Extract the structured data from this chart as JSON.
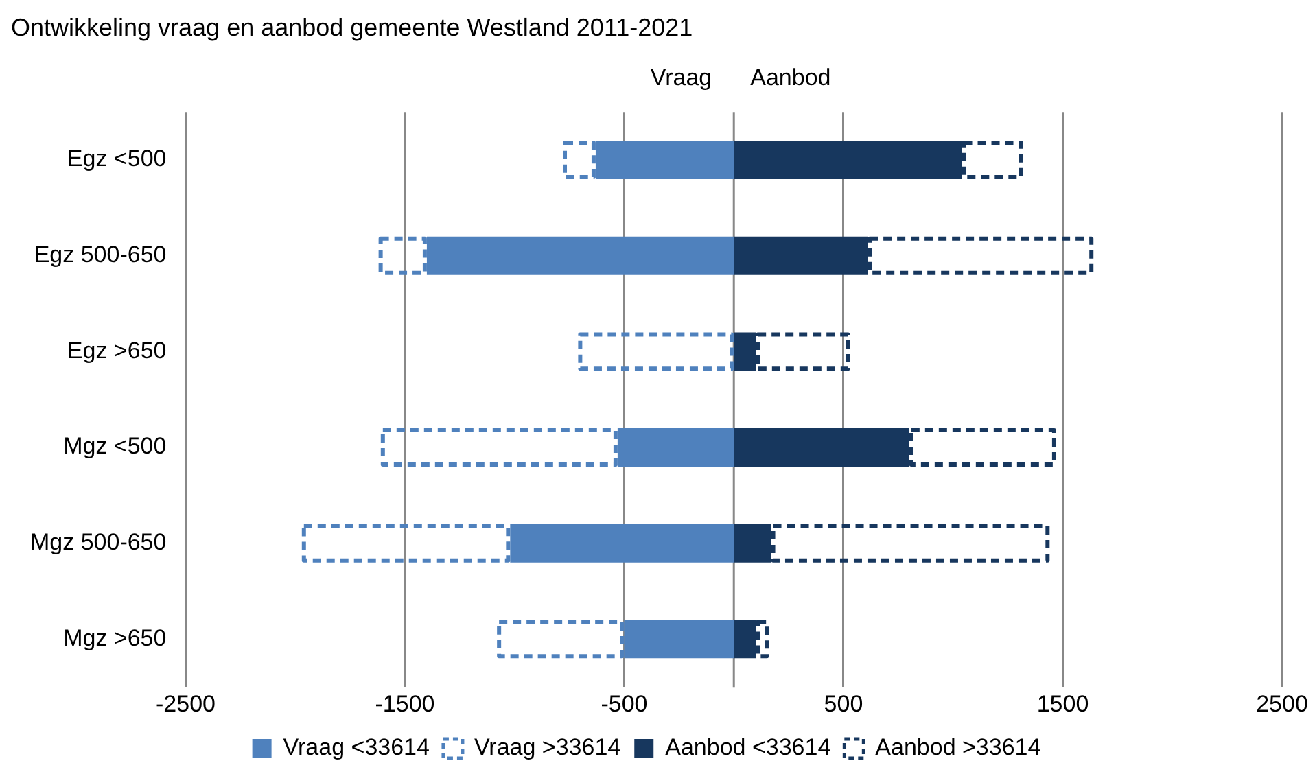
{
  "chart_data": {
    "type": "bar",
    "orientation": "horizontal",
    "stacked": true,
    "title": "Ontwikkeling vraag en aanbod gemeente Westland 2011-2021",
    "annotations": [
      "Vraag",
      "Aanbod"
    ],
    "categories": [
      "Egz <500",
      "Egz 500-650",
      "Egz >650",
      "Mgz <500",
      "Mgz 500-650",
      "Mgz >650"
    ],
    "series": [
      {
        "name": "Vraag <33614",
        "color": "#4f81bd",
        "values": [
          -630,
          -1400,
          0,
          -530,
          -1020,
          -500
        ]
      },
      {
        "name": "Vraag >33614",
        "color": "#4f81bd",
        "line_style": "dashed",
        "values": [
          -150,
          -220,
          -710,
          -1080,
          -950,
          -580
        ]
      },
      {
        "name": "Aanbod <33614",
        "color": "#17375e",
        "values": [
          1040,
          610,
          100,
          800,
          170,
          100
        ]
      },
      {
        "name": "Aanbod >33614",
        "color": "#17375e",
        "line_style": "dashed",
        "values": [
          280,
          1030,
          430,
          670,
          1270,
          60
        ]
      }
    ],
    "xlim": [
      -2500,
      2500
    ],
    "xticks": [
      -2500,
      -1500,
      -500,
      500,
      1500,
      2500
    ],
    "grid": "x",
    "legend": "bottom"
  }
}
